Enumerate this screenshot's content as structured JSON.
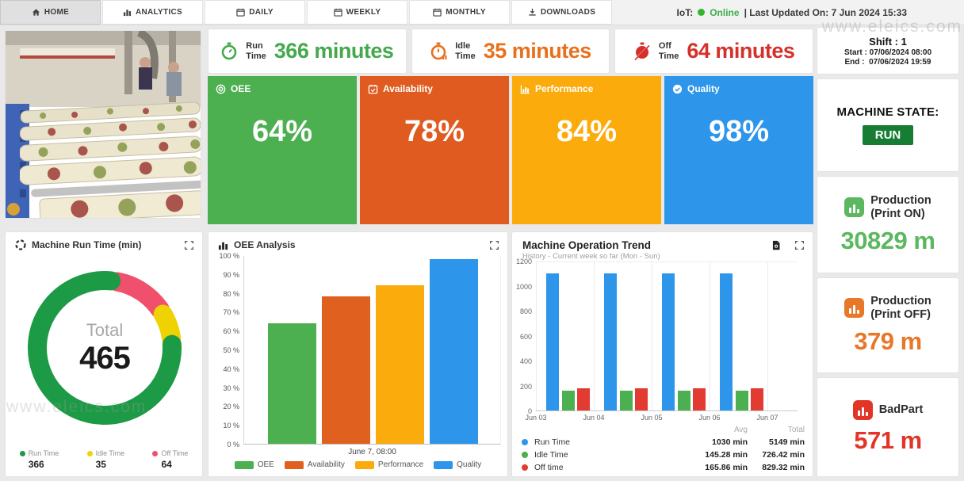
{
  "topbar": {
    "tabs": [
      {
        "label": "HOME",
        "icon": "home-icon",
        "active": true
      },
      {
        "label": "ANALYTICS",
        "icon": "analytics-icon",
        "active": false
      },
      {
        "label": "DAILY",
        "icon": "calendar-icon",
        "active": false
      },
      {
        "label": "WEEKLY",
        "icon": "calendar-icon",
        "active": false
      },
      {
        "label": "MONTHLY",
        "icon": "calendar-icon",
        "active": false
      },
      {
        "label": "DOWNLOADS",
        "icon": "download-icon",
        "active": false
      }
    ],
    "status": {
      "label": "IoT:",
      "online": "Online",
      "updated": "| Last Updated On: 7 Jun 2024 15:33"
    }
  },
  "kpis": [
    {
      "line1": "Run",
      "line2": "Time",
      "value": "366 minutes",
      "color": "#44a94d",
      "icon": "stopwatch-run-icon"
    },
    {
      "line1": "Idle",
      "line2": "Time",
      "value": "35 minutes",
      "color": "#e8701c",
      "icon": "stopwatch-idle-icon"
    },
    {
      "line1": "Off",
      "line2": "Time",
      "value": "64 minutes",
      "color": "#d6302b",
      "icon": "stopwatch-off-icon"
    }
  ],
  "tiles": [
    {
      "label": "OEE",
      "value": "64%",
      "color": "#4caf50",
      "icon": "target-icon"
    },
    {
      "label": "Availability",
      "value": "78%",
      "color": "#e05b20",
      "icon": "calendar-check-icon"
    },
    {
      "label": "Performance",
      "value": "84%",
      "color": "#fbab0c",
      "icon": "bar-chart-icon"
    },
    {
      "label": "Quality",
      "value": "98%",
      "color": "#2d96ea",
      "icon": "quality-check-icon"
    }
  ],
  "right_panel": {
    "shift": {
      "title": "Shift : 1",
      "start_label": "Start :",
      "start_value": "07/06/2024 08:00",
      "end_label": "End :",
      "end_value": "07/06/2024 19:59"
    },
    "machine_state": {
      "label": "MACHINE STATE:",
      "state": "RUN",
      "state_color": "#177d33"
    },
    "cards": [
      {
        "line1": "Production",
        "line2": "(Print ON)",
        "value": "30829 m",
        "color": "#5cb860"
      },
      {
        "line1": "Production",
        "line2": "(Print OFF)",
        "value": "379 m",
        "color": "#e8772a"
      },
      {
        "line1": "BadPart",
        "line2": "",
        "value": "571 m",
        "color": "#e23528"
      }
    ]
  },
  "watermark": "www.eleics.com",
  "chart_data": [
    {
      "type": "pie",
      "variant": "donut",
      "title": "Machine Run Time (min)",
      "center_label": "Total",
      "total": 465,
      "slices": [
        {
          "name": "Run Time",
          "value": 366,
          "color": "#1d9a46"
        },
        {
          "name": "Idle Time",
          "value": 35,
          "color": "#eed202"
        },
        {
          "name": "Off Time",
          "value": 64,
          "color": "#f0506c"
        }
      ],
      "legend_position": "bottom"
    },
    {
      "type": "bar",
      "title": "OEE Analysis",
      "categories": [
        "OEE",
        "Availability",
        "Performance",
        "Quality"
      ],
      "values": [
        64,
        78,
        84,
        98
      ],
      "colors": [
        "#4caf50",
        "#e0601f",
        "#fbab0c",
        "#2d96ea"
      ],
      "ylim": [
        0,
        100
      ],
      "yticks": [
        0,
        10,
        20,
        30,
        40,
        50,
        60,
        70,
        80,
        90,
        100
      ],
      "ytick_suffix": " %",
      "xlabel": "June 7, 08:00",
      "legend_position": "bottom",
      "grid": false
    },
    {
      "type": "bar",
      "variant": "grouped",
      "title": "Machine Operation Trend",
      "subtitle": "History - Current week so far (Mon - Sun)",
      "categories": [
        "Jun 03",
        "Jun 04",
        "Jun 05",
        "Jun 06",
        "Jun 07"
      ],
      "series": [
        {
          "name": "Run Time",
          "color": "#2d96ea",
          "values": [
            1100,
            1100,
            1100,
            1100,
            null
          ],
          "avg": "1030 min",
          "total": "5149 min"
        },
        {
          "name": "Idle Time",
          "color": "#4caf50",
          "values": [
            160,
            160,
            160,
            160,
            null
          ],
          "avg": "145.28 min",
          "total": "726.42 min"
        },
        {
          "name": "Off time",
          "color": "#e23b32",
          "values": [
            180,
            180,
            180,
            180,
            null
          ],
          "avg": "165.86 min",
          "total": "829.32 min"
        }
      ],
      "ylim": [
        0,
        1200
      ],
      "yticks": [
        0,
        200,
        400,
        600,
        800,
        1000,
        1200
      ],
      "stats_headers": [
        "Avg",
        "Total"
      ],
      "grid": "vertical"
    }
  ]
}
